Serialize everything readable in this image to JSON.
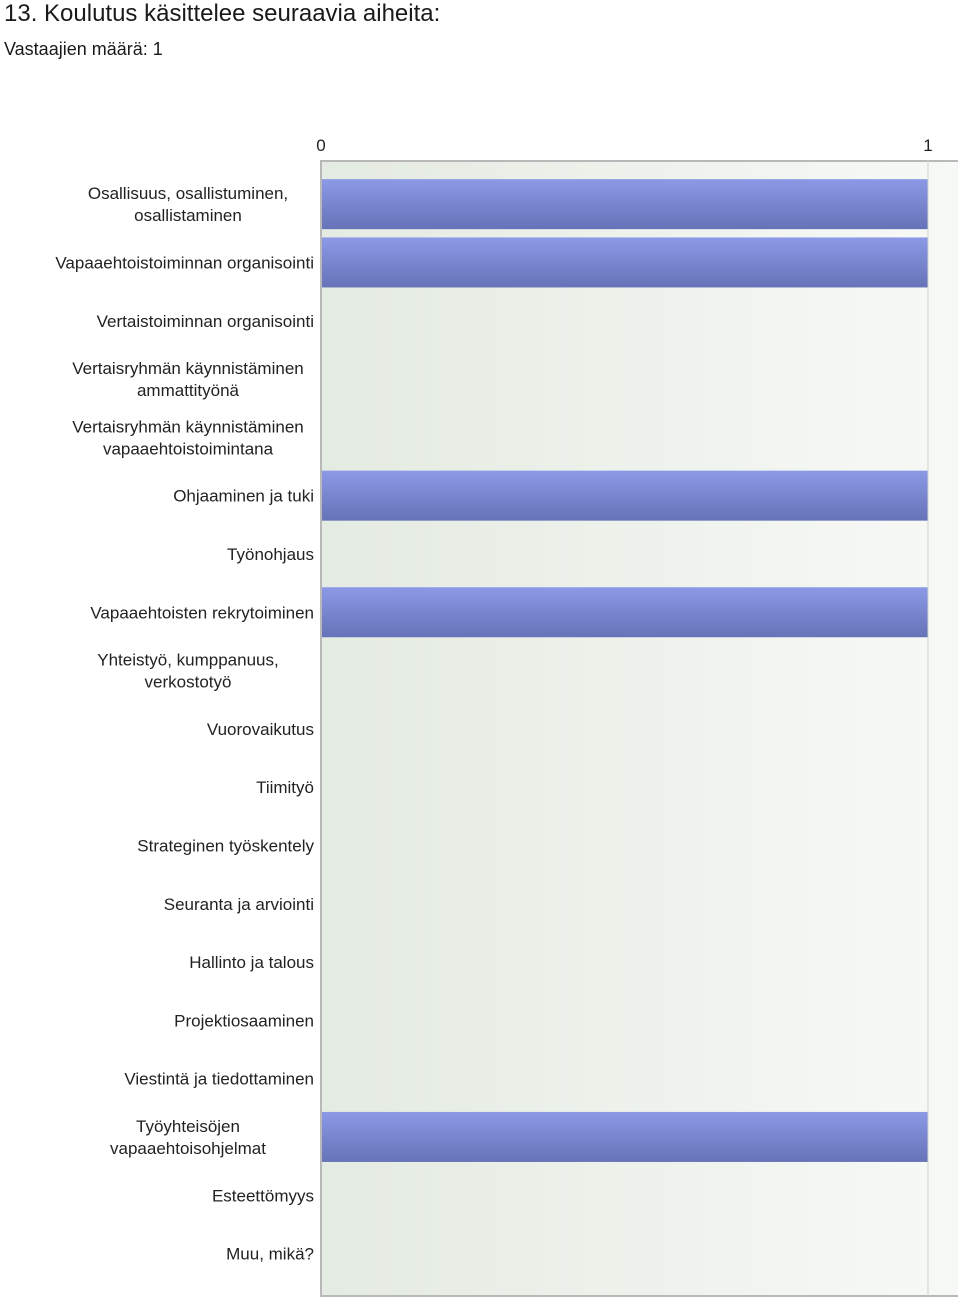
{
  "header": {
    "title": "13. Koulutus käsittelee seuraavia aiheita:",
    "respondents": "Vastaajien määrä: 1"
  },
  "colors": {
    "bar_top": "#8c99e6",
    "bar_bottom": "#6673b8",
    "plot_bg_left": "#e4ebe2",
    "plot_bg_right": "#f7f9f6",
    "axis": "#b8b8b8"
  },
  "chart_data": {
    "type": "bar",
    "orientation": "horizontal",
    "title": "",
    "xlabel": "",
    "ylabel": "",
    "xlim": [
      0,
      1
    ],
    "ticks": [
      "0",
      "1"
    ],
    "grid": false,
    "categories": [
      [
        "Osallisuus, osallistuminen,",
        "osallistaminen"
      ],
      [
        "Vapaaehtoistoiminnan organisointi"
      ],
      [
        "Vertaistoiminnan organisointi"
      ],
      [
        "Vertaisryhmän käynnistäminen",
        "ammattityönä"
      ],
      [
        "Vertaisryhmän käynnistäminen",
        "vapaaehtoistoimintana"
      ],
      [
        "Ohjaaminen ja tuki"
      ],
      [
        "Työnohjaus"
      ],
      [
        "Vapaaehtoisten rekrytoiminen"
      ],
      [
        "Yhteistyö, kumppanuus,",
        "verkostotyö"
      ],
      [
        "Vuorovaikutus"
      ],
      [
        "Tiimityö"
      ],
      [
        "Strateginen työskentely"
      ],
      [
        "Seuranta ja arviointi"
      ],
      [
        "Hallinto ja talous"
      ],
      [
        "Projektiosaaminen"
      ],
      [
        "Viestintä ja tiedottaminen"
      ],
      [
        "Työyhteisöjen",
        "vapaaehtoisohjelmat"
      ],
      [
        "Esteettömyys"
      ],
      [
        "Muu, mikä?"
      ]
    ],
    "values": [
      1,
      1,
      0,
      0,
      0,
      1,
      0,
      1,
      0,
      0,
      0,
      0,
      0,
      0,
      0,
      0,
      1,
      0,
      0
    ]
  }
}
